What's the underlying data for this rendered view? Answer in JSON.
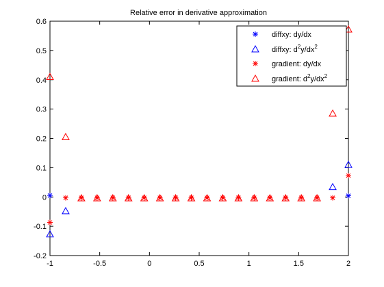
{
  "chart_data": {
    "type": "scatter",
    "title": "Relative error in derivative approximation",
    "xlabel": "",
    "ylabel": "",
    "xlim": [
      -1,
      2
    ],
    "ylim": [
      -0.2,
      0.6
    ],
    "xticks": [
      "-1",
      "-0.5",
      "0",
      "0.5",
      "1",
      "1.5",
      "2"
    ],
    "yticks": [
      "-0.2",
      "-0.1",
      "0",
      "0.1",
      "0.2",
      "0.3",
      "0.4",
      "0.5",
      "0.6"
    ],
    "grid": false,
    "legend_position": "top-right",
    "series": [
      {
        "name": "diffxy: dy/dx",
        "name_parts": {
          "pre": "diffxy: dy/dx",
          "sup": "",
          "mid": "",
          "sup2": ""
        },
        "marker": "star",
        "color": "#0000ff",
        "x": [
          -1.0,
          2.0
        ],
        "y": [
          0.005,
          0.004
        ]
      },
      {
        "name": "diffxy: d2y/dx2",
        "name_parts": {
          "pre": "diffxy: d",
          "sup": "2",
          "mid": "y/dx",
          "sup2": "2"
        },
        "marker": "triangle",
        "color": "#0000ff",
        "x": [
          -1.0,
          -0.8421,
          1.8421,
          2.0
        ],
        "y": [
          -0.127,
          -0.048,
          0.034,
          0.11
        ]
      },
      {
        "name": "gradient: dy/dx",
        "name_parts": {
          "pre": "gradient: dy/dx",
          "sup": "",
          "mid": "",
          "sup2": ""
        },
        "marker": "star",
        "color": "#ff0000",
        "x": [
          -1.0,
          -0.8421,
          -0.6842,
          -0.5263,
          -0.3684,
          -0.2105,
          -0.0526,
          0.1053,
          0.2632,
          0.4211,
          0.5789,
          0.7368,
          0.8947,
          1.0526,
          1.2105,
          1.3684,
          1.5263,
          1.6842,
          1.8421,
          2.0
        ],
        "y": [
          -0.087,
          -0.003,
          -0.003,
          -0.003,
          -0.003,
          -0.003,
          -0.003,
          -0.003,
          -0.003,
          -0.003,
          -0.003,
          -0.003,
          -0.003,
          -0.003,
          -0.003,
          -0.003,
          -0.003,
          -0.003,
          -0.003,
          0.073
        ]
      },
      {
        "name": "gradient: d2y/dx2",
        "name_parts": {
          "pre": "gradient: d",
          "sup": "2",
          "mid": "y/dx",
          "sup2": "2"
        },
        "marker": "triangle",
        "color": "#ff0000",
        "x": [
          -1.0,
          -0.8421,
          -0.6842,
          -0.5263,
          -0.3684,
          -0.2105,
          -0.0526,
          0.1053,
          0.2632,
          0.4211,
          0.5789,
          0.7368,
          0.8947,
          1.0526,
          1.2105,
          1.3684,
          1.5263,
          1.6842,
          1.8421,
          2.0
        ],
        "y": [
          0.41,
          0.205,
          -0.004,
          -0.004,
          -0.004,
          -0.004,
          -0.004,
          -0.004,
          -0.004,
          -0.004,
          -0.004,
          -0.004,
          -0.004,
          -0.004,
          -0.004,
          -0.004,
          -0.004,
          -0.004,
          0.285,
          0.572
        ]
      }
    ]
  }
}
